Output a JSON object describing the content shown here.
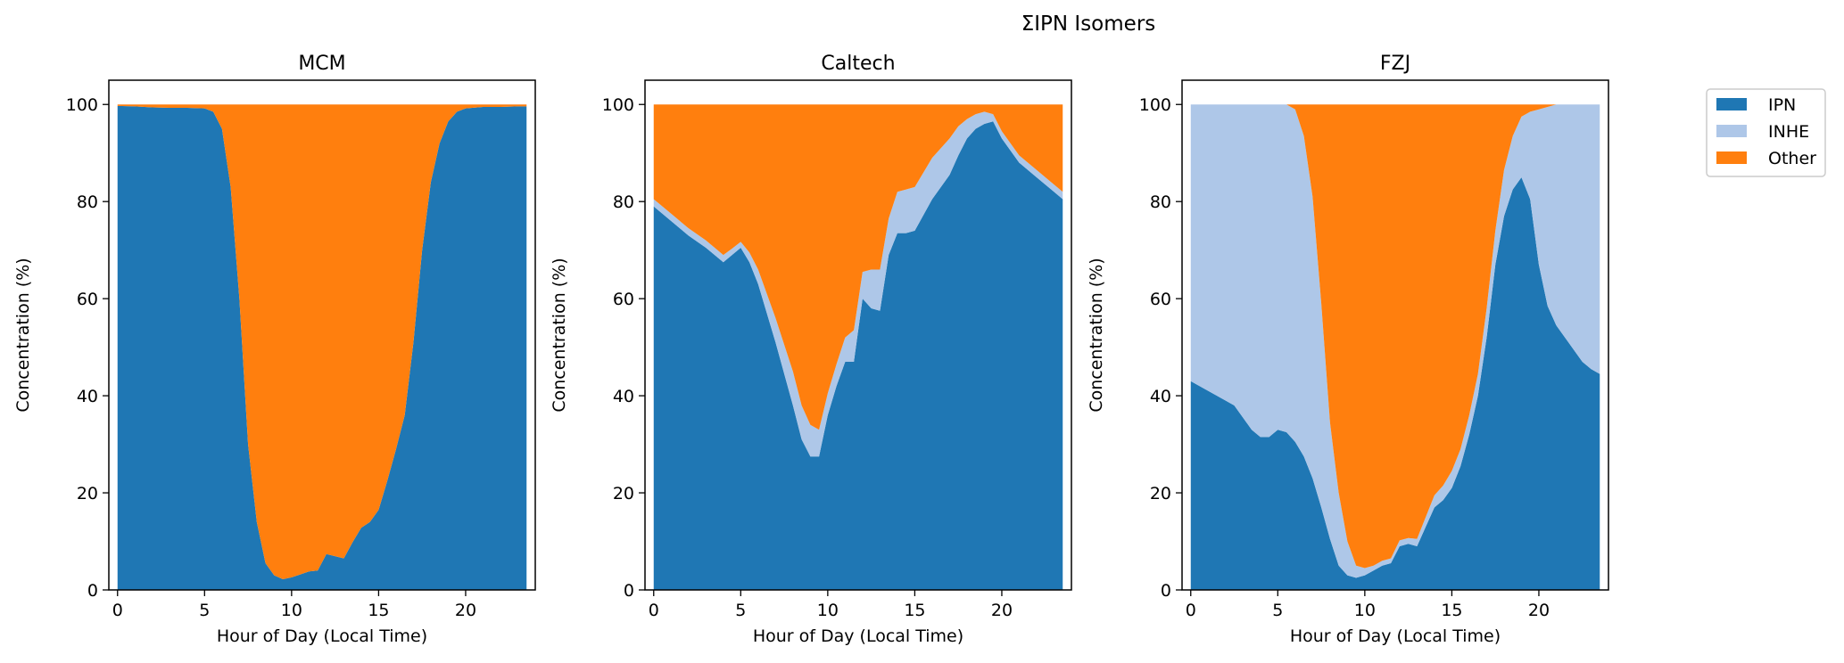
{
  "suptitle": "ΣIPN Isomers",
  "legend": {
    "placement": "outside right, top",
    "entries": [
      {
        "name": "IPN",
        "color": "#1f77b4"
      },
      {
        "name": "INHE",
        "color": "#aec7e8"
      },
      {
        "name": "Other",
        "color": "#ff7f0e"
      }
    ]
  },
  "chart_data": [
    {
      "type": "area",
      "stacked": true,
      "title": "MCM",
      "xlabel": "Hour of Day (Local Time)",
      "ylabel": "Concentration (%)",
      "xlim": [
        -0.5,
        24.0
      ],
      "ylim": [
        0,
        105
      ],
      "xticks": [
        "0",
        "5",
        "10",
        "15",
        "20"
      ],
      "yticks": [
        "0",
        "20",
        "40",
        "60",
        "80",
        "100"
      ],
      "x": [
        0,
        1,
        2,
        3,
        4,
        5,
        5.5,
        6,
        6.5,
        7,
        7.5,
        8,
        8.5,
        9,
        9.5,
        10,
        10.5,
        11,
        11.5,
        12,
        13,
        13.5,
        14,
        14.5,
        15,
        15.5,
        16,
        16.5,
        17,
        17.5,
        18,
        18.5,
        19,
        19.5,
        20,
        21,
        22,
        23,
        23.5
      ],
      "series": [
        {
          "name": "IPN",
          "values": [
            99.7,
            99.6,
            99.4,
            99.3,
            99.3,
            99.2,
            98.5,
            95.0,
            83.0,
            60.0,
            30.0,
            14.0,
            5.5,
            3.0,
            2.2,
            2.6,
            3.2,
            3.8,
            4.0,
            7.4,
            6.5,
            9.8,
            12.8,
            14.0,
            16.5,
            22.5,
            29.0,
            36.0,
            51.0,
            70.0,
            84.0,
            92.0,
            96.5,
            98.5,
            99.2,
            99.5,
            99.5,
            99.6,
            99.6
          ]
        },
        {
          "name": "INHE",
          "values": [
            0,
            0,
            0,
            0,
            0,
            0,
            0,
            0,
            0,
            0,
            0,
            0,
            0,
            0,
            0,
            0,
            0,
            0,
            0,
            0,
            0,
            0,
            0,
            0,
            0,
            0,
            0,
            0,
            0,
            0,
            0,
            0,
            0,
            0,
            0,
            0,
            0,
            0,
            0
          ]
        },
        {
          "name": "Other",
          "values": [
            0.3,
            0.4,
            0.6,
            0.7,
            0.7,
            0.8,
            1.5,
            5.0,
            17.0,
            40.0,
            70.0,
            86.0,
            94.5,
            97.0,
            97.8,
            97.4,
            96.8,
            96.2,
            96.0,
            92.6,
            93.5,
            90.2,
            87.2,
            86.0,
            83.5,
            77.5,
            71.0,
            64.0,
            49.0,
            30.0,
            16.0,
            8.0,
            3.5,
            1.5,
            0.8,
            0.5,
            0.5,
            0.4,
            0.4
          ]
        }
      ]
    },
    {
      "type": "area",
      "stacked": true,
      "title": "Caltech",
      "xlabel": "Hour of Day (Local Time)",
      "ylabel": "Concentration (%)",
      "xlim": [
        -0.5,
        24.0
      ],
      "ylim": [
        0,
        105
      ],
      "xticks": [
        "0",
        "5",
        "10",
        "15",
        "20"
      ],
      "yticks": [
        "0",
        "20",
        "40",
        "60",
        "80",
        "100"
      ],
      "x": [
        0,
        1,
        2,
        3,
        4,
        4.5,
        5,
        5.5,
        6,
        7,
        8,
        8.5,
        9,
        9.5,
        10,
        10.5,
        11,
        11.5,
        12,
        12.5,
        13,
        13.5,
        14,
        14.5,
        15,
        16,
        17,
        17.5,
        18,
        18.5,
        19,
        19.5,
        20,
        21,
        22,
        23,
        23.5
      ],
      "series": [
        {
          "name": "IPN",
          "values": [
            79.0,
            76.0,
            73.0,
            70.5,
            67.5,
            69.0,
            70.5,
            67.5,
            63.0,
            51.0,
            38.0,
            31.0,
            27.5,
            27.5,
            36.0,
            42.0,
            47.0,
            47.0,
            60.0,
            58.0,
            57.5,
            69.0,
            73.5,
            73.5,
            74.0,
            80.5,
            85.5,
            89.5,
            93.0,
            95.0,
            96.0,
            96.5,
            93.0,
            88.0,
            85.0,
            82.0,
            80.5
          ]
        },
        {
          "name": "INHE",
          "values": [
            1.5,
            1.5,
            1.5,
            1.5,
            1.5,
            1.3,
            1.2,
            2.0,
            3.0,
            5.0,
            7.0,
            7.0,
            6.5,
            5.5,
            4.5,
            4.5,
            5.0,
            6.5,
            5.5,
            8.0,
            8.5,
            7.5,
            8.5,
            9.0,
            9.0,
            8.5,
            7.5,
            6.0,
            4.0,
            3.0,
            2.5,
            1.5,
            1.5,
            1.5,
            1.5,
            1.5,
            1.5
          ]
        },
        {
          "name": "Other",
          "values": [
            19.5,
            22.5,
            25.5,
            28.0,
            31.0,
            29.7,
            28.3,
            30.5,
            34.0,
            44.0,
            55.0,
            62.0,
            66.0,
            67.0,
            59.5,
            53.5,
            48.0,
            46.5,
            34.5,
            34.0,
            34.0,
            23.5,
            18.0,
            17.5,
            17.0,
            11.0,
            7.0,
            4.5,
            3.0,
            2.0,
            1.5,
            2.0,
            5.5,
            10.5,
            13.5,
            16.5,
            18.0
          ]
        }
      ]
    },
    {
      "type": "area",
      "stacked": true,
      "title": "FZJ",
      "xlabel": "Hour of Day (Local Time)",
      "ylabel": "Concentration (%)",
      "xlim": [
        -0.5,
        24.0
      ],
      "ylim": [
        0,
        105
      ],
      "xticks": [
        "0",
        "5",
        "10",
        "15",
        "20"
      ],
      "yticks": [
        "0",
        "20",
        "40",
        "60",
        "80",
        "100"
      ],
      "x": [
        0,
        1,
        2,
        2.5,
        3,
        3.5,
        4,
        4.5,
        5,
        5.5,
        6,
        6.5,
        7,
        7.5,
        8,
        8.5,
        9,
        9.5,
        10,
        10.5,
        11,
        11.5,
        12,
        12.5,
        13,
        13.5,
        14,
        14.5,
        15,
        15.5,
        16,
        16.5,
        17,
        17.5,
        18,
        18.5,
        19,
        19.5,
        20,
        20.5,
        21,
        21.5,
        22,
        22.5,
        23,
        23.5
      ],
      "series": [
        {
          "name": "IPN",
          "values": [
            43.0,
            41.0,
            39.0,
            38.0,
            35.5,
            33.0,
            31.5,
            31.5,
            33.0,
            32.5,
            30.5,
            27.5,
            23.0,
            17.0,
            10.5,
            5.0,
            3.0,
            2.5,
            3.0,
            4.0,
            5.0,
            5.5,
            9.0,
            9.5,
            9.0,
            13.0,
            17.0,
            18.5,
            21.0,
            25.5,
            32.0,
            40.0,
            52.0,
            67.0,
            77.0,
            82.5,
            85.0,
            80.5,
            67.0,
            58.5,
            54.5,
            52.0,
            49.5,
            47.0,
            45.5,
            44.5
          ]
        },
        {
          "name": "INHE",
          "values": [
            57.0,
            59.0,
            61.0,
            62.0,
            64.5,
            67.0,
            68.5,
            68.5,
            67.0,
            67.5,
            68.5,
            66.0,
            58.0,
            42.0,
            24.0,
            15.0,
            7.0,
            2.5,
            1.5,
            1.0,
            1.0,
            1.0,
            1.2,
            1.2,
            1.5,
            2.0,
            2.5,
            3.0,
            3.5,
            3.5,
            4.0,
            4.5,
            6.0,
            7.0,
            9.5,
            11.0,
            12.5,
            18.0,
            32.0,
            41.0,
            45.5,
            48.0,
            50.5,
            53.0,
            54.5,
            55.5
          ]
        },
        {
          "name": "Other",
          "values": [
            0,
            0,
            0,
            0,
            0,
            0,
            0,
            0,
            0,
            0,
            1.0,
            6.5,
            19.0,
            41.0,
            65.5,
            80.0,
            90.0,
            95.0,
            95.5,
            95.0,
            94.0,
            93.5,
            89.8,
            89.3,
            89.5,
            85.0,
            80.5,
            78.5,
            75.5,
            71.0,
            64.0,
            55.5,
            42.0,
            26.0,
            13.5,
            6.5,
            2.5,
            1.5,
            1.0,
            0.5,
            0,
            0,
            0,
            0,
            0,
            0
          ]
        }
      ]
    }
  ]
}
